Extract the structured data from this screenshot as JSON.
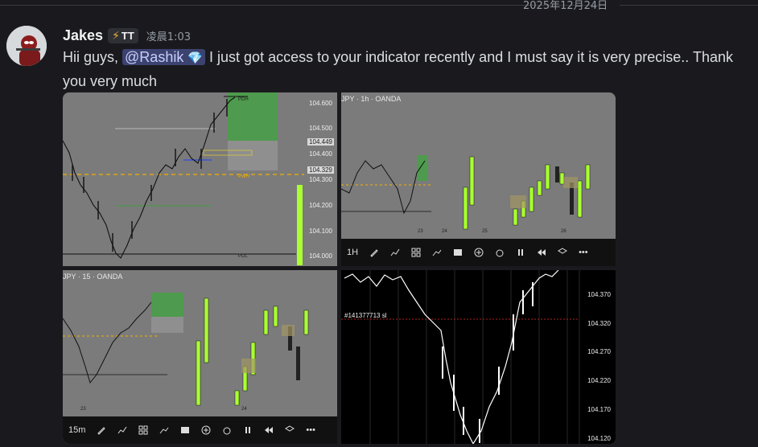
{
  "date_divider": "2025年12月24日",
  "message": {
    "username": "Jakes",
    "tag": "TT",
    "timestamp": "凌晨1:03",
    "text_before": "Hii guys, ",
    "mention": "@Rashik",
    "text_after": " I just got access to your indicator recently and I must say it is very precise.. Thank you very much"
  },
  "attachments": {
    "a1": {
      "prices": [
        "104.600",
        "104.500",
        "104.400",
        "104.300",
        "104.200",
        "104.100",
        "104.000"
      ],
      "tags": [
        "104.449",
        "104.329"
      ],
      "line_labels": [
        "PDH",
        "PWH",
        "PDL"
      ]
    },
    "a2": {
      "title": "JPY · 1h · OANDA",
      "dates": [
        "23",
        "24",
        "25",
        "26"
      ],
      "interval": "1H"
    },
    "a3": {
      "title": "JPY · 15 · OANDA",
      "dates": [
        "23",
        "24"
      ],
      "interval": "15m"
    },
    "a4": {
      "order_label": "#141377713 sl",
      "prices": [
        "104.370",
        "104.320",
        "104.270",
        "104.220",
        "104.170",
        "104.120"
      ]
    }
  },
  "toolbar_icons": [
    "draw-icon",
    "indicators-icon",
    "layout-icon",
    "compare-icon",
    "tv-logo-icon",
    "add-icon",
    "alarm-icon",
    "replay-icon",
    "rewind-icon",
    "layers-icon",
    "more-icon"
  ],
  "colors": {
    "mention_bg": "#3c4270",
    "candle_green": "#aaff33",
    "zone_green": "#3fa34d"
  }
}
